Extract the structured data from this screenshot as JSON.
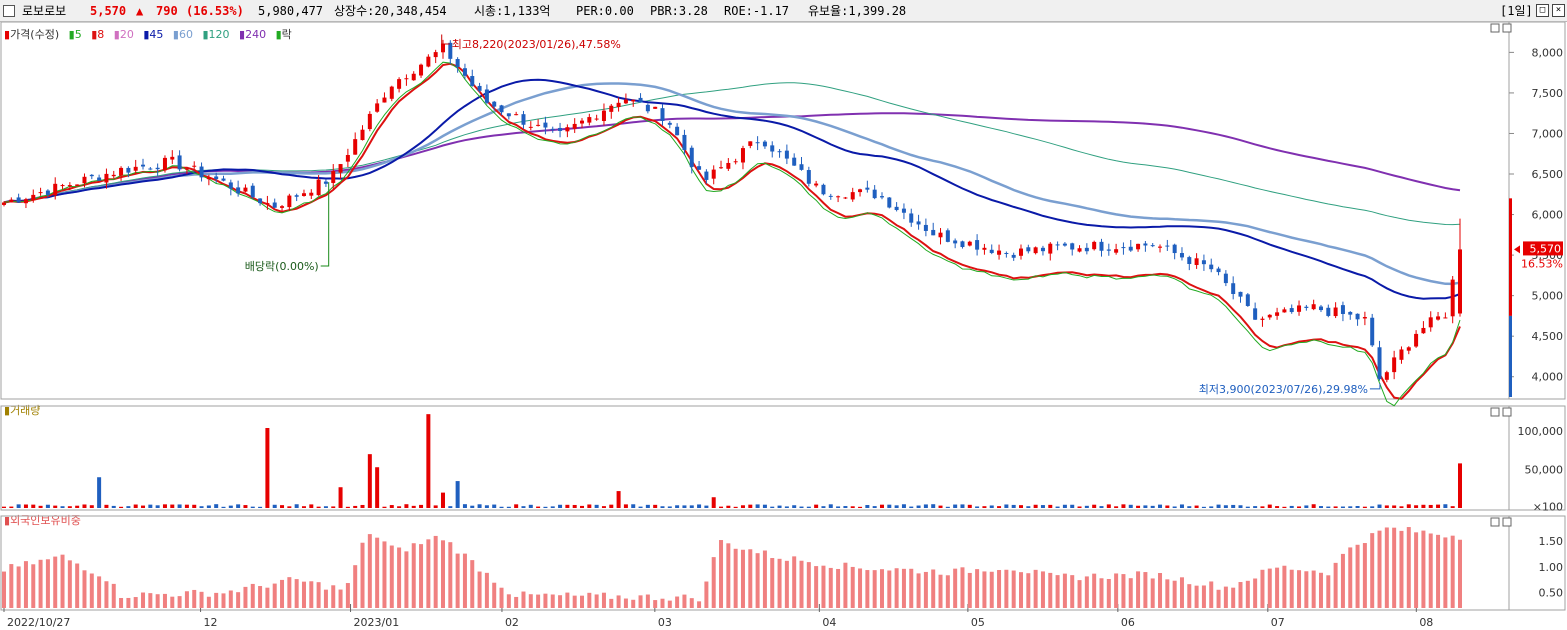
{
  "header": {
    "name": "로보로보",
    "price": "5,570",
    "arrow": "▲",
    "change": "790",
    "change_pct": "(16.53%)",
    "volume": "5,980,477",
    "shares_label": "상장수:20,348,454",
    "mcap_label": "시총:1,133억",
    "per_label": "PER:0.00",
    "pbr_label": "PBR:3.28",
    "roe_label": "ROE:-1.17",
    "float_label": "유보율:1,399.28",
    "period": "[1일]"
  },
  "price_legend": {
    "price_label": "가격(수정)",
    "ma5": "5",
    "ma8": "8",
    "ma20": "20",
    "ma45": "45",
    "ma60": "60",
    "ma120": "120",
    "ma240": "240",
    "ex_label": "락"
  },
  "annotations": {
    "high": "최고8,220(2023/01/26),47.58%",
    "low": "최저3,900(2023/07/26),29.98%",
    "dividend": "배당락(0.00%)"
  },
  "current_price_tag": {
    "price": "5,570",
    "pct": "16.53%"
  },
  "volume_panel": {
    "title": "거래량"
  },
  "foreign_panel": {
    "title": "외국인보유비중"
  },
  "colors": {
    "up": "#e60000",
    "down": "#1f5fbf",
    "ma5": "#22aa22",
    "ma8": "#dd1111",
    "ma20": "#d070c0",
    "ma45": "#0a1aa8",
    "ma60": "#7a9fd0",
    "ma120": "#30a080",
    "ma240": "#8030b0",
    "foreign": "#f08080"
  },
  "chart_data": [
    {
      "type": "candlestick",
      "title": "",
      "x_ticks": [
        "2022/10/27",
        "12",
        "2023/01",
        "02",
        "03",
        "04",
        "05",
        "06",
        "07",
        "08"
      ],
      "y_ticks": [
        4000,
        4500,
        5000,
        5500,
        6000,
        6500,
        7000,
        7500,
        8000
      ],
      "ylim": [
        3750,
        8350
      ],
      "ma_endpoints": {
        "ma240": 6300,
        "ma120": 5880,
        "ma60": 5160,
        "ma45": 5020,
        "ma8": 4620,
        "ma5": 4700
      },
      "anchors": [
        {
          "t": 0,
          "c": 6150
        },
        {
          "t": 0.08,
          "c": 6550
        },
        {
          "t": 0.115,
          "c": 6650
        },
        {
          "t": 0.15,
          "c": 6400
        },
        {
          "t": 0.185,
          "c": 6100
        },
        {
          "t": 0.225,
          "c": 6450
        },
        {
          "t": 0.265,
          "c": 7600
        },
        {
          "t": 0.302,
          "c": 8050
        },
        {
          "t": 0.33,
          "c": 7400
        },
        {
          "t": 0.38,
          "c": 6950
        },
        {
          "t": 0.425,
          "c": 7450
        },
        {
          "t": 0.455,
          "c": 7200
        },
        {
          "t": 0.48,
          "c": 6400
        },
        {
          "t": 0.52,
          "c": 6950
        },
        {
          "t": 0.56,
          "c": 6300
        },
        {
          "t": 0.6,
          "c": 6250
        },
        {
          "t": 0.64,
          "c": 5750
        },
        {
          "t": 0.69,
          "c": 5530
        },
        {
          "t": 0.73,
          "c": 5600
        },
        {
          "t": 0.79,
          "c": 5630
        },
        {
          "t": 0.83,
          "c": 5320
        },
        {
          "t": 0.86,
          "c": 4700
        },
        {
          "t": 0.9,
          "c": 4850
        },
        {
          "t": 0.935,
          "c": 4700
        },
        {
          "t": 0.945,
          "c": 3950
        },
        {
          "t": 0.97,
          "c": 4550
        },
        {
          "t": 0.99,
          "c": 4780
        },
        {
          "t": 1,
          "c": 5570
        }
      ]
    },
    {
      "type": "bar",
      "title": "거래량",
      "y_ticks": [
        "100,000",
        "50,000",
        "×100"
      ],
      "ylim": [
        0,
        130000
      ],
      "spikes": [
        {
          "t": 0.292,
          "v": 122000
        },
        {
          "t": 0.18,
          "v": 104000
        },
        {
          "t": 0.25,
          "v": 70000
        },
        {
          "t": 0.256,
          "v": 53000
        },
        {
          "t": 0.232,
          "v": 27000
        },
        {
          "t": 0.063,
          "v": 40000
        },
        {
          "t": 0.31,
          "v": 35000
        },
        {
          "t": 0.304,
          "v": 20000
        },
        {
          "t": 0.42,
          "v": 22000
        },
        {
          "t": 0.485,
          "v": 14000
        },
        {
          "t": 1,
          "v": 58000
        }
      ]
    },
    {
      "type": "bar",
      "title": "외국인보유비중",
      "y_ticks": [
        "1.50",
        "1.00",
        "0.50"
      ],
      "ylim": [
        0.2,
        1.95
      ],
      "anchors": [
        {
          "t": 0,
          "v": 0.95
        },
        {
          "t": 0.04,
          "v": 1.2
        },
        {
          "t": 0.07,
          "v": 0.8
        },
        {
          "t": 0.08,
          "v": 0.45
        },
        {
          "t": 0.15,
          "v": 0.5
        },
        {
          "t": 0.2,
          "v": 0.75
        },
        {
          "t": 0.235,
          "v": 0.55
        },
        {
          "t": 0.25,
          "v": 1.7
        },
        {
          "t": 0.27,
          "v": 1.3
        },
        {
          "t": 0.3,
          "v": 1.6
        },
        {
          "t": 0.33,
          "v": 0.9
        },
        {
          "t": 0.35,
          "v": 0.45
        },
        {
          "t": 0.48,
          "v": 0.4
        },
        {
          "t": 0.49,
          "v": 1.5
        },
        {
          "t": 0.53,
          "v": 1.2
        },
        {
          "t": 0.58,
          "v": 1.0
        },
        {
          "t": 0.65,
          "v": 0.9
        },
        {
          "t": 0.69,
          "v": 1.0
        },
        {
          "t": 0.72,
          "v": 0.8
        },
        {
          "t": 0.79,
          "v": 0.85
        },
        {
          "t": 0.84,
          "v": 0.6
        },
        {
          "t": 0.875,
          "v": 1.0
        },
        {
          "t": 0.91,
          "v": 0.9
        },
        {
          "t": 0.925,
          "v": 1.4
        },
        {
          "t": 0.95,
          "v": 1.75
        },
        {
          "t": 1,
          "v": 1.6
        }
      ]
    }
  ]
}
